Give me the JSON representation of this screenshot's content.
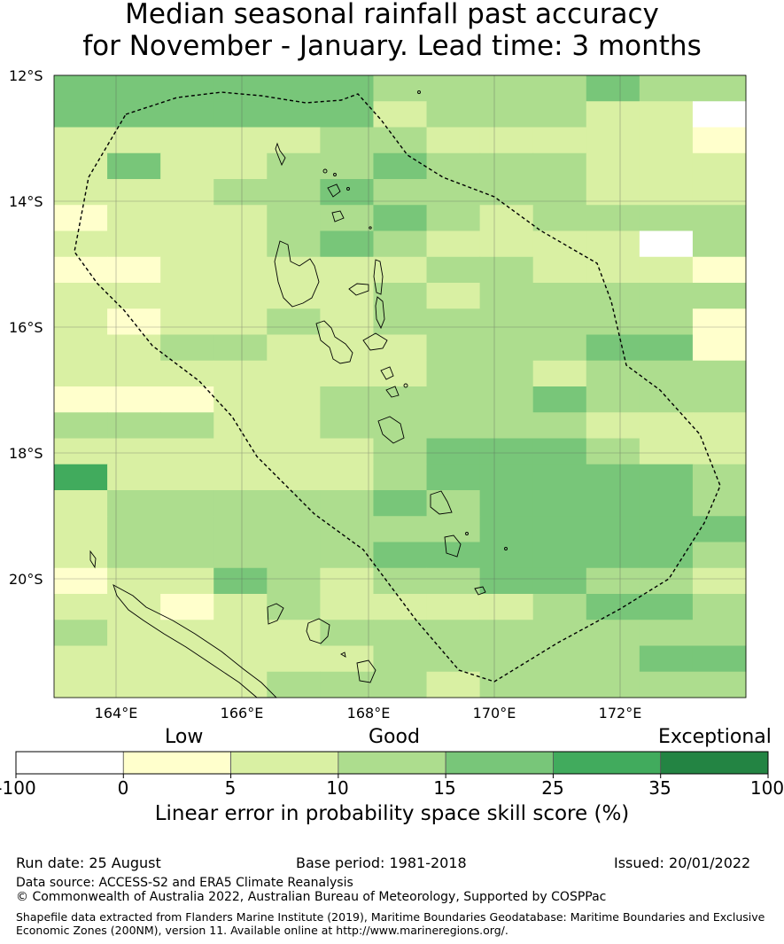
{
  "title": {
    "line1": "Median seasonal rainfall past accuracy",
    "line2": "for November - January. Lead time: 3 months"
  },
  "map": {
    "lat_labels": [
      "12°S",
      "14°S",
      "16°S",
      "18°S",
      "20°S"
    ],
    "lon_labels": [
      "164°E",
      "166°E",
      "168°E",
      "170°E",
      "172°E"
    ],
    "grid_rows": [
      "3333332222322",
      "3333331222111",
      "1111122111110",
      "1311223222111",
      "1112232222111",
      "0111223212222",
      "1111232111112",
      "0011111221110",
      "1111112122222",
      "1011212222220",
      "1122111222330",
      "1111111221222",
      "0001122223222",
      "2221122222111",
      "1111112333211",
      "4111112333332",
      "1222223233332",
      "1222222233333",
      "1222223333332",
      "0113212233221",
      "1101211112332",
      "2111122222222",
      "1111112222233",
      "1111222122222"
    ],
    "legend_key": [
      "0-5",
      "5-10",
      "10-15",
      "15-25",
      "25-35",
      "35-100",
      "-100-0"
    ]
  },
  "legend": {
    "categories": [
      "Low",
      "Good",
      "Exceptional"
    ],
    "ticks": [
      "-100",
      "0",
      "5",
      "10",
      "15",
      "25",
      "35",
      "100"
    ],
    "colors": [
      "#ffffff",
      "#ffffcc",
      "#d9f0a3",
      "#addd8e",
      "#78c679",
      "#41ab5d",
      "#238443"
    ],
    "title": "Linear error in probability space skill score (%)"
  },
  "footer": {
    "run_date": "Run date: 25 August",
    "base_period": "Base period: 1981-2018",
    "issued": "Issued: 20/01/2022",
    "data_source": "Data source: ACCESS-S2 and ERA5 Climate Reanalysis",
    "copyright": "© Commonwealth of Australia 2022, Australian Bureau of Meteorology, Supported by COSPPac",
    "shapefile_line1": "Shapefile data extracted from Flanders Marine Institute (2019), Maritime Boundaries Geodatabase: Maritime Boundaries and Exclusive",
    "shapefile_line2": "Economic Zones (200NM), version 11. Available online at http://www.marineregions.org/."
  }
}
